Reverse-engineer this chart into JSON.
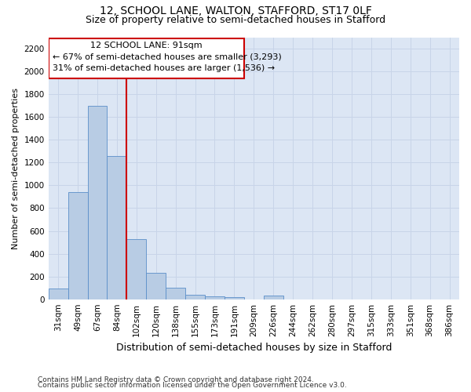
{
  "title": "12, SCHOOL LANE, WALTON, STAFFORD, ST17 0LF",
  "subtitle": "Size of property relative to semi-detached houses in Stafford",
  "xlabel": "Distribution of semi-detached houses by size in Stafford",
  "ylabel": "Number of semi-detached properties",
  "annotation_line1": "12 SCHOOL LANE: 91sqm",
  "annotation_line2": "← 67% of semi-detached houses are smaller (3,293)",
  "annotation_line3": "31% of semi-detached houses are larger (1,536) →",
  "footer_line1": "Contains HM Land Registry data © Crown copyright and database right 2024.",
  "footer_line2": "Contains public sector information licensed under the Open Government Licence v3.0.",
  "categories": [
    "31sqm",
    "49sqm",
    "67sqm",
    "84sqm",
    "102sqm",
    "120sqm",
    "138sqm",
    "155sqm",
    "173sqm",
    "191sqm",
    "209sqm",
    "226sqm",
    "244sqm",
    "262sqm",
    "280sqm",
    "297sqm",
    "315sqm",
    "333sqm",
    "351sqm",
    "368sqm",
    "386sqm"
  ],
  "values": [
    93,
    940,
    1700,
    1255,
    530,
    230,
    100,
    40,
    25,
    18,
    0,
    30,
    0,
    0,
    0,
    0,
    0,
    0,
    0,
    0,
    0
  ],
  "bar_color": "#b8cce4",
  "bar_edge_color": "#5b8fc9",
  "vline_color": "#cc0000",
  "annotation_box_color": "#cc0000",
  "ylim": [
    0,
    2300
  ],
  "yticks": [
    0,
    200,
    400,
    600,
    800,
    1000,
    1200,
    1400,
    1600,
    1800,
    2000,
    2200
  ],
  "grid_color": "#c8d4e8",
  "background_color": "#dce6f4",
  "title_fontsize": 10,
  "subtitle_fontsize": 9,
  "ylabel_fontsize": 8,
  "xlabel_fontsize": 9,
  "tick_fontsize": 7.5,
  "footer_fontsize": 6.5,
  "annot_fontsize": 8
}
